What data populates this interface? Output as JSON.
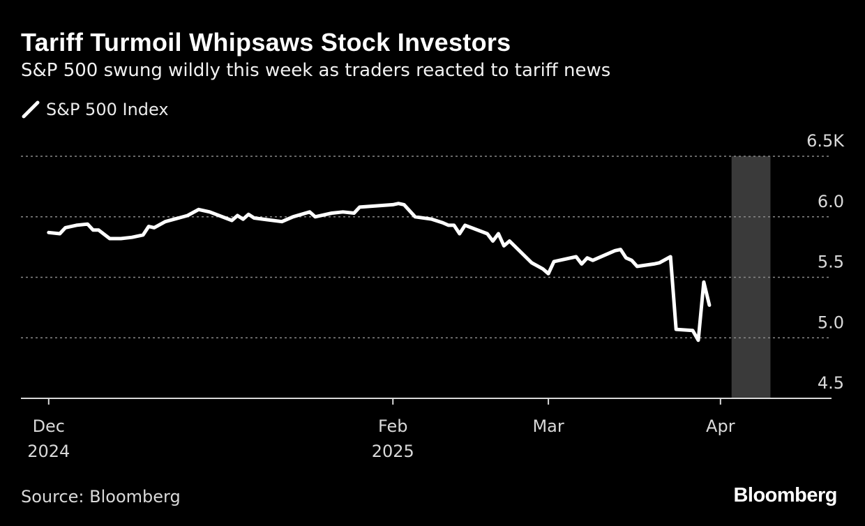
{
  "header": {
    "title": "Tariff Turmoil Whipsaws Stock Investors",
    "subtitle": "S&P 500 swung wildly this week as traders reacted to tariff news"
  },
  "legend": {
    "label": "S&P 500 Index",
    "color": "#ffffff"
  },
  "footer": {
    "source": "Source: Bloomberg",
    "brand": "Bloomberg"
  },
  "colors": {
    "background": "#000000",
    "line": "#ffffff",
    "highlight": "#3a3a3a",
    "grid": "#8a8a8a",
    "axis": "#d9d9d9"
  },
  "chart_data": {
    "type": "line",
    "title": "Tariff Turmoil Whipsaws Stock Investors",
    "subtitle": "S&P 500 swung wildly this week as traders reacted to tariff news",
    "xlabel": "",
    "ylabel": "",
    "ylim": [
      4.5,
      6.5
    ],
    "xlim": [
      "2024-11-26",
      "2025-04-21"
    ],
    "grid": true,
    "legend_position": "top-left",
    "y_ticks": [
      {
        "value": 4.5,
        "label": "4.5"
      },
      {
        "value": 5.0,
        "label": "5.0"
      },
      {
        "value": 5.5,
        "label": "5.5"
      },
      {
        "value": 6.0,
        "label": "6.0"
      },
      {
        "value": 6.5,
        "label": "6.5K"
      }
    ],
    "x_ticks": [
      {
        "date": "2024-12-01",
        "label": "Dec",
        "sublabel": "2024"
      },
      {
        "date": "2025-02-01",
        "label": "Feb",
        "sublabel": "2025"
      },
      {
        "date": "2025-03-01",
        "label": "Mar",
        "sublabel": ""
      },
      {
        "date": "2025-04-01",
        "label": "Apr",
        "sublabel": ""
      }
    ],
    "highlight": {
      "start": "2025-04-03",
      "end": "2025-04-10"
    },
    "series": [
      {
        "name": "S&P 500 Index",
        "points": [
          [
            "2024-12-01",
            5.87
          ],
          [
            "2024-12-03",
            5.86
          ],
          [
            "2024-12-04",
            5.91
          ],
          [
            "2024-12-06",
            5.93
          ],
          [
            "2024-12-08",
            5.94
          ],
          [
            "2024-12-09",
            5.89
          ],
          [
            "2024-12-10",
            5.89
          ],
          [
            "2024-12-12",
            5.82
          ],
          [
            "2024-12-14",
            5.82
          ],
          [
            "2024-12-16",
            5.83
          ],
          [
            "2024-12-18",
            5.85
          ],
          [
            "2024-12-19",
            5.92
          ],
          [
            "2024-12-20",
            5.91
          ],
          [
            "2024-12-22",
            5.96
          ],
          [
            "2024-12-26",
            6.01
          ],
          [
            "2024-12-28",
            6.06
          ],
          [
            "2024-12-30",
            6.04
          ],
          [
            "2025-01-03",
            5.97
          ],
          [
            "2025-01-04",
            6.01
          ],
          [
            "2025-01-05",
            5.98
          ],
          [
            "2025-01-06",
            6.02
          ],
          [
            "2025-01-07",
            5.99
          ],
          [
            "2025-01-12",
            5.96
          ],
          [
            "2025-01-14",
            6.0
          ],
          [
            "2025-01-17",
            6.04
          ],
          [
            "2025-01-18",
            6.0
          ],
          [
            "2025-01-21",
            6.03
          ],
          [
            "2025-01-23",
            6.04
          ],
          [
            "2025-01-25",
            6.03
          ],
          [
            "2025-01-26",
            6.08
          ],
          [
            "2025-02-01",
            6.1
          ],
          [
            "2025-02-02",
            6.11
          ],
          [
            "2025-02-03",
            6.1
          ],
          [
            "2025-02-05",
            6.0
          ],
          [
            "2025-02-08",
            5.98
          ],
          [
            "2025-02-10",
            5.95
          ],
          [
            "2025-02-11",
            5.93
          ],
          [
            "2025-02-12",
            5.93
          ],
          [
            "2025-02-13",
            5.86
          ],
          [
            "2025-02-14",
            5.93
          ],
          [
            "2025-02-18",
            5.86
          ],
          [
            "2025-02-19",
            5.8
          ],
          [
            "2025-02-20",
            5.86
          ],
          [
            "2025-02-21",
            5.76
          ],
          [
            "2025-02-22",
            5.8
          ],
          [
            "2025-02-26",
            5.62
          ],
          [
            "2025-02-28",
            5.57
          ],
          [
            "2025-03-01",
            5.53
          ],
          [
            "2025-03-02",
            5.63
          ],
          [
            "2025-03-06",
            5.67
          ],
          [
            "2025-03-07",
            5.61
          ],
          [
            "2025-03-08",
            5.66
          ],
          [
            "2025-03-09",
            5.64
          ],
          [
            "2025-03-10",
            5.66
          ],
          [
            "2025-03-13",
            5.72
          ],
          [
            "2025-03-14",
            5.73
          ],
          [
            "2025-03-15",
            5.66
          ],
          [
            "2025-03-16",
            5.64
          ],
          [
            "2025-03-17",
            5.59
          ],
          [
            "2025-03-20",
            5.61
          ],
          [
            "2025-03-21",
            5.62
          ],
          [
            "2025-03-23",
            5.67
          ],
          [
            "2025-03-24",
            5.07
          ],
          [
            "2025-03-27",
            5.06
          ],
          [
            "2025-03-28",
            4.98
          ],
          [
            "2025-03-29",
            5.46
          ],
          [
            "2025-03-30",
            5.27
          ]
        ]
      }
    ]
  }
}
